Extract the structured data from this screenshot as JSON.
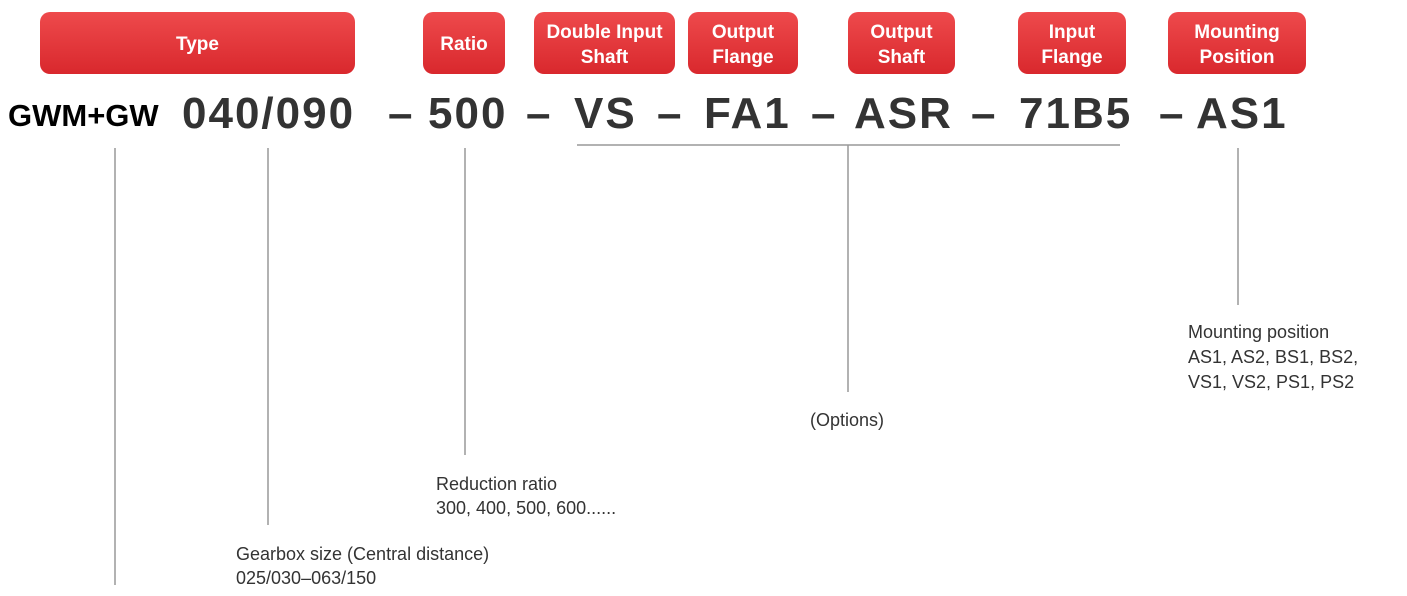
{
  "labels": [
    [
      "Type"
    ],
    [
      "Ratio"
    ],
    [
      "Double Input",
      "Shaft"
    ],
    [
      "Output",
      "Flange"
    ],
    [
      "Output",
      "Shaft"
    ],
    [
      "Input",
      "Flange"
    ],
    [
      "Mounting",
      "Position"
    ]
  ],
  "code": {
    "prefix": "GWM+GW",
    "parts": [
      "040/090",
      "500",
      "VS",
      "FA1",
      "ASR",
      "71B5",
      "AS1"
    ],
    "separator": "–"
  },
  "descriptions": {
    "gearbox_size": [
      "Gearbox size (Central distance)",
      "025/030–063/150"
    ],
    "ratio": [
      "Reduction ratio",
      "300, 400, 500, 600......"
    ],
    "options": [
      "(Options)"
    ],
    "mounting": [
      "Mounting position",
      "AS1, AS2, BS1, BS2,",
      "VS1, VS2, PS1, PS2"
    ]
  }
}
